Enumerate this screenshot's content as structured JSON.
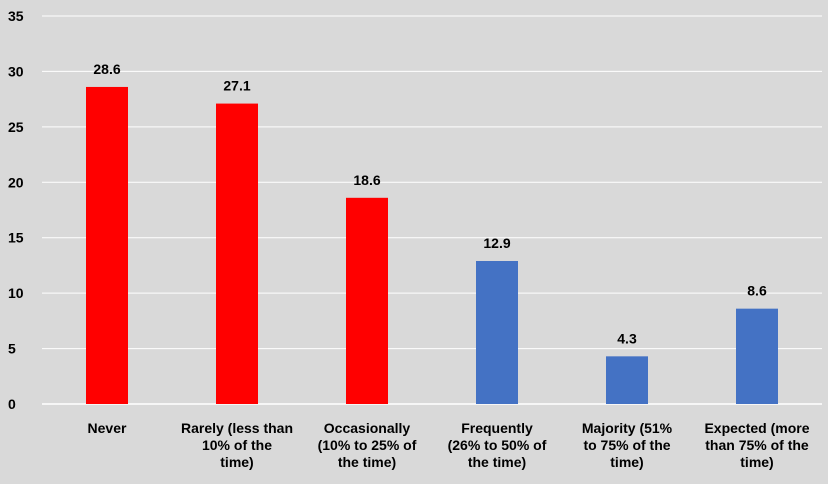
{
  "chart_data": {
    "type": "bar",
    "categories": [
      [
        "Never"
      ],
      [
        "Rarely (less than",
        "10% of the",
        "time)"
      ],
      [
        "Occasionally",
        "(10% to 25% of",
        "the time)"
      ],
      [
        "Frequently",
        "(26% to 50% of",
        "the time)"
      ],
      [
        "Majority (51%",
        "to 75% of the",
        "time)"
      ],
      [
        "Expected (more",
        "than 75% of the",
        "time)"
      ]
    ],
    "values": [
      28.6,
      27.1,
      18.6,
      12.9,
      4.3,
      8.6
    ],
    "data_labels": [
      "28.6",
      "27.1",
      "18.6",
      "12.9",
      "4.3",
      "8.6"
    ],
    "bar_colors": [
      "#ff0000",
      "#ff0000",
      "#ff0000",
      "#4472c4",
      "#4472c4",
      "#4472c4"
    ],
    "ylim": [
      0,
      35
    ],
    "yticks": [
      0,
      5,
      10,
      15,
      20,
      25,
      30,
      35
    ],
    "grid": true,
    "background": "#d9d9d9",
    "gridline_color": "#ffffff",
    "title": "",
    "xlabel": "",
    "ylabel": ""
  }
}
